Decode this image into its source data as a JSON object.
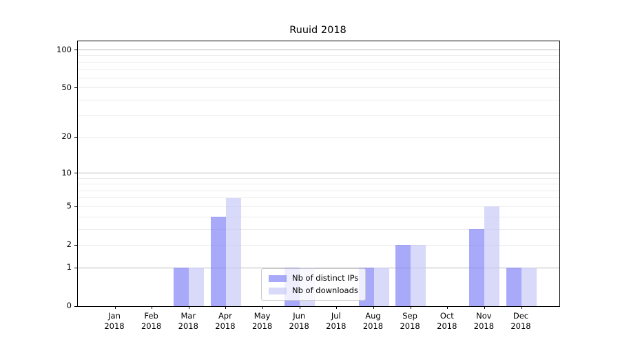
{
  "title": "Ruuid 2018",
  "chart_data": {
    "type": "bar",
    "title": "Ruuid 2018",
    "categories": [
      "Jan 2018",
      "Feb 2018",
      "Mar 2018",
      "Apr 2018",
      "May 2018",
      "Jun 2018",
      "Jul 2018",
      "Aug 2018",
      "Sep 2018",
      "Oct 2018",
      "Nov 2018",
      "Dec 2018"
    ],
    "series": [
      {
        "name": "Nb of distinct IPs",
        "color": "rgba(125,125,248,0.66)",
        "values": [
          0,
          0,
          1,
          4,
          0,
          1,
          0,
          1,
          2,
          0,
          3,
          1
        ]
      },
      {
        "name": "Nb of downloads",
        "color": "rgba(197,197,247,0.66)",
        "values": [
          0,
          0,
          1,
          6,
          0,
          1,
          0,
          1,
          2,
          0,
          5,
          1
        ]
      }
    ],
    "yscale": "log1p",
    "ylim": [
      0,
      117
    ],
    "y_tick_labels": [
      0,
      1,
      2,
      5,
      10,
      20,
      50,
      100
    ],
    "y_major_gridlines": [
      1,
      10,
      100
    ],
    "y_minor_gridlines": [
      2,
      3,
      4,
      5,
      6,
      7,
      8,
      9,
      20,
      30,
      40,
      50,
      60,
      70,
      80,
      90
    ],
    "grid": "both",
    "legend_position": "lower center",
    "colors": {
      "major_grid": "#b9b9b9",
      "minor_grid": "#ebebeb",
      "axis": "#000000",
      "bar_dark_on_white": "#aaaafa",
      "bar_light_on_white": "#d9d9fa"
    }
  }
}
